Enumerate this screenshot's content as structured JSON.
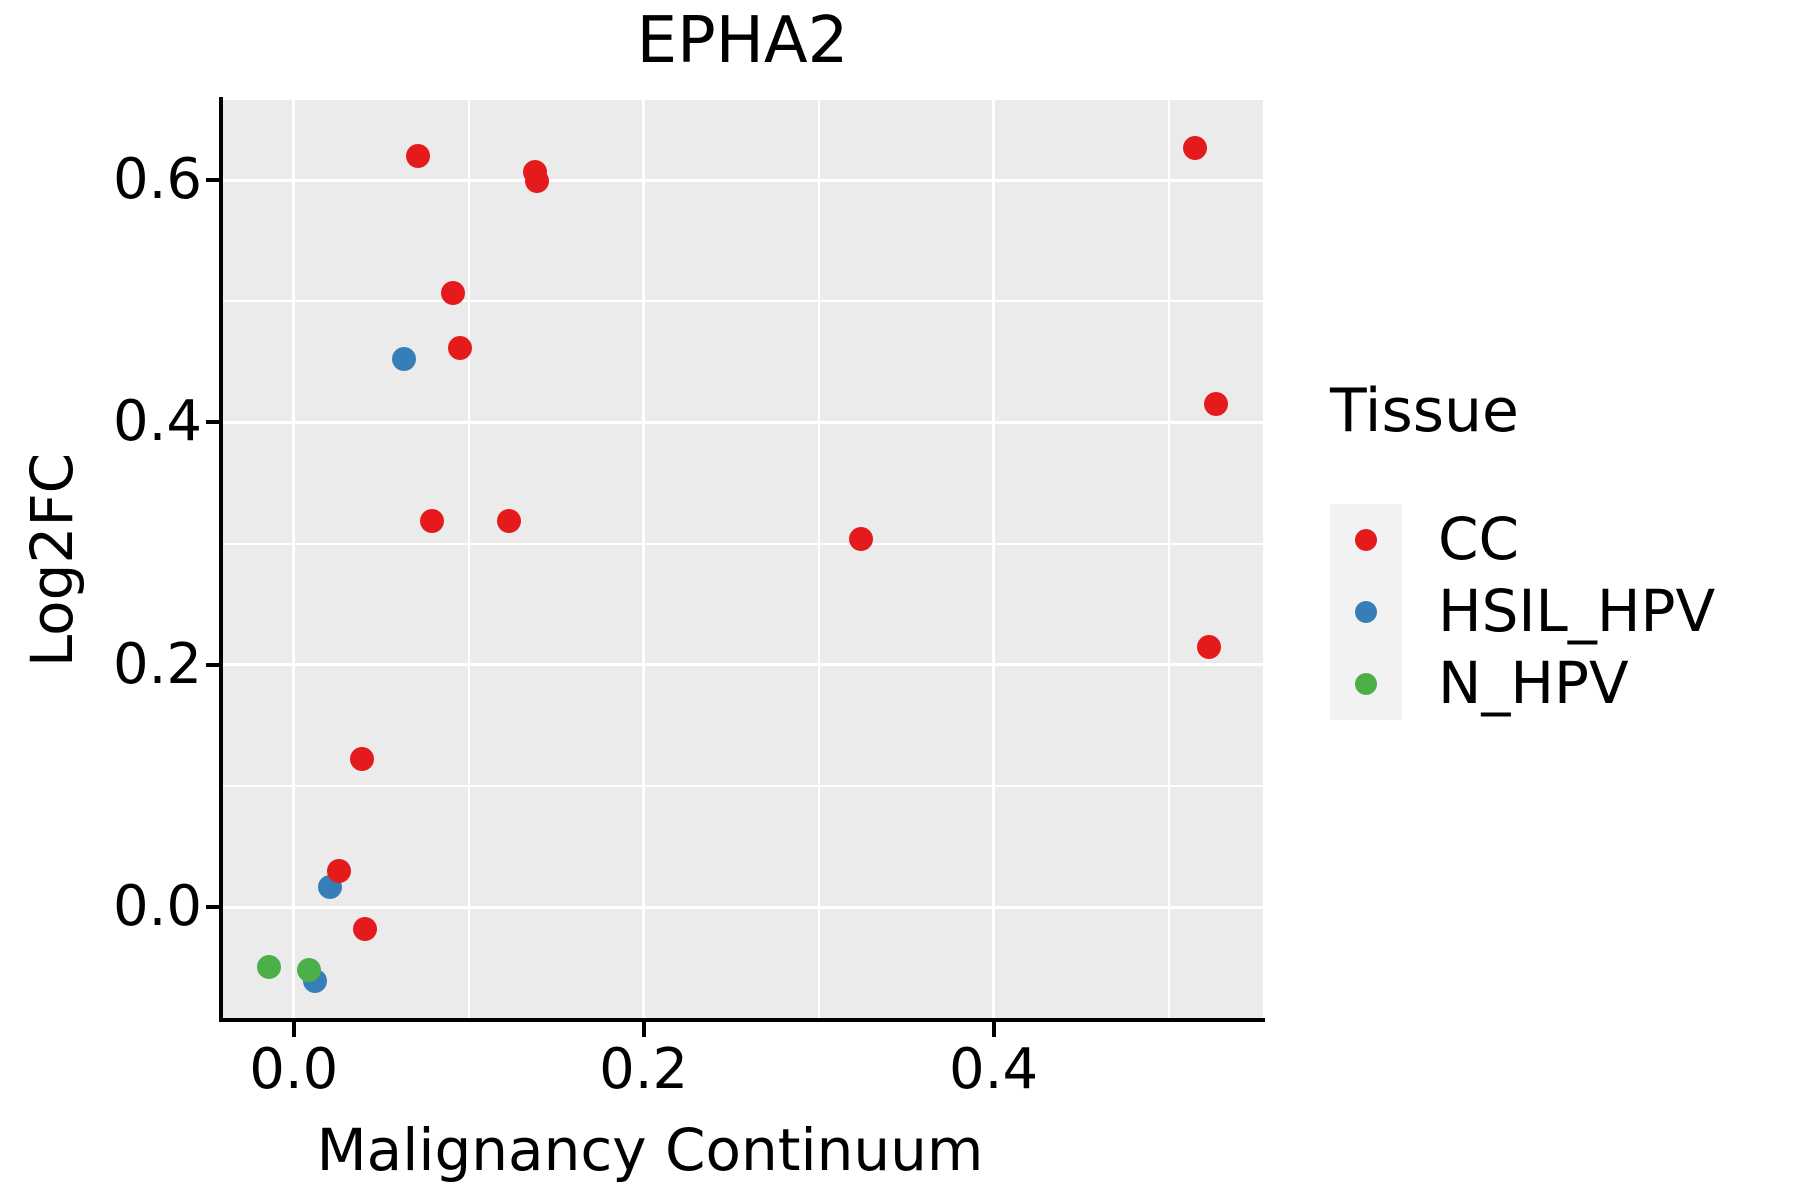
{
  "title": "EPHA2",
  "chart_data": {
    "type": "scatter",
    "title": "EPHA2",
    "xlabel": "Malignancy Continuum",
    "ylabel": "Log2FC",
    "xlim": [
      -0.041,
      0.554
    ],
    "ylim": [
      -0.093,
      0.666
    ],
    "x_ticks": [
      0.0,
      0.2,
      0.4
    ],
    "x_tick_labels": [
      "0.0",
      "0.2",
      "0.4"
    ],
    "y_ticks": [
      0.6,
      0.4,
      0.2,
      0.0
    ],
    "y_tick_labels": [
      "0.6",
      "0.4",
      "0.2",
      "0.0"
    ],
    "x_minor_gridlines": [
      0.1,
      0.3,
      0.5
    ],
    "y_minor_gridlines": [
      0.1,
      0.3,
      0.5
    ],
    "grid": true,
    "panel_background": "#EBEBEB",
    "gridline_color": "#ffffff",
    "legend_position": "right",
    "series": [
      {
        "name": "CC",
        "color": "#E41A1C",
        "points": [
          [
            0.071,
            0.62
          ],
          [
            0.138,
            0.607
          ],
          [
            0.139,
            0.599
          ],
          [
            0.091,
            0.507
          ],
          [
            0.095,
            0.461
          ],
          [
            0.079,
            0.319
          ],
          [
            0.123,
            0.319
          ],
          [
            0.324,
            0.304
          ],
          [
            0.515,
            0.626
          ],
          [
            0.527,
            0.415
          ],
          [
            0.523,
            0.215
          ],
          [
            0.039,
            0.122
          ],
          [
            0.026,
            0.03
          ],
          [
            0.041,
            -0.018
          ]
        ]
      },
      {
        "name": "HSIL_HPV",
        "color": "#377EB8",
        "points": [
          [
            0.063,
            0.452
          ],
          [
            0.021,
            0.017
          ],
          [
            0.012,
            -0.061
          ]
        ]
      },
      {
        "name": "N_HPV",
        "color": "#4DAF4A",
        "points": [
          [
            -0.014,
            -0.049
          ],
          [
            0.009,
            -0.052
          ]
        ]
      }
    ],
    "draw_order": [
      "HSIL_HPV",
      "N_HPV",
      "CC"
    ]
  },
  "legend": {
    "title": "Tissue",
    "items": [
      {
        "label": "CC",
        "color": "#E41A1C"
      },
      {
        "label": "HSIL_HPV",
        "color": "#377EB8"
      },
      {
        "label": "N_HPV",
        "color": "#4DAF4A"
      }
    ]
  }
}
